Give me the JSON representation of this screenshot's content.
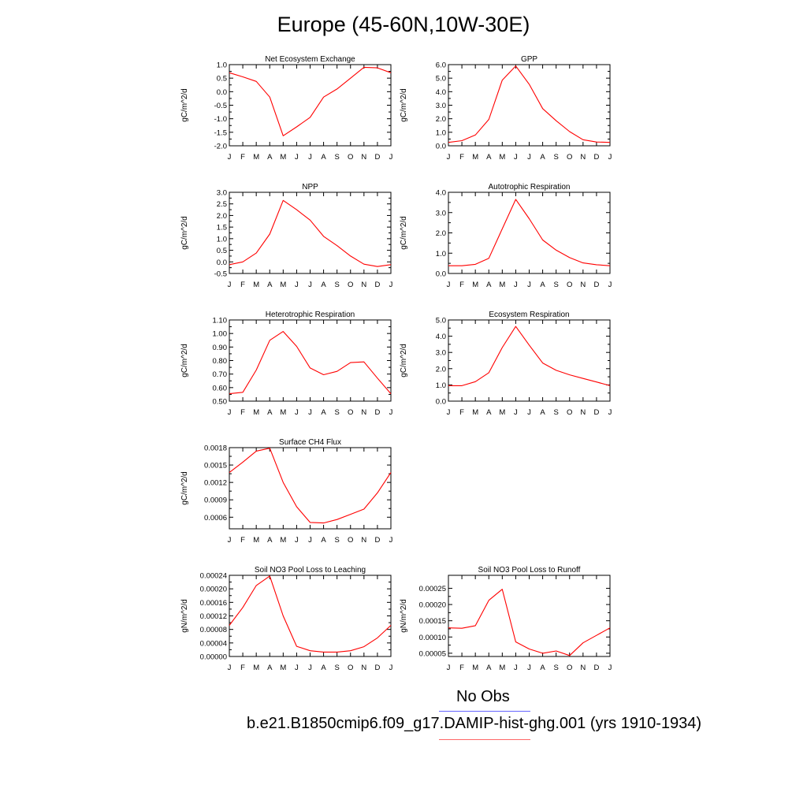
{
  "title": "Europe (45-60N,10W-30E)",
  "months": [
    "J",
    "F",
    "M",
    "A",
    "M",
    "J",
    "J",
    "A",
    "S",
    "O",
    "N",
    "D",
    "J"
  ],
  "colors": {
    "model": "#ff0000",
    "obs": "#6666ff",
    "axis": "#000000"
  },
  "legend": {
    "obs_label": "No Obs",
    "model_label": "b.e21.B1850cmip6.f09_g17.DAMIP-hist-ghg.001 (yrs 1910-1934)"
  },
  "chart_data": [
    {
      "type": "line",
      "title": "Net Ecosystem Exchange",
      "ylabel": "gC/m^2/d",
      "ylim": [
        -2.0,
        1.0
      ],
      "yticks": [
        -2.0,
        -1.5,
        -1.0,
        -0.5,
        0.0,
        0.5,
        1.0
      ],
      "ytick_labels": [
        "-2.0",
        "-1.5",
        "-1.0",
        "-0.5",
        "0.0",
        "0.5",
        "1.0"
      ],
      "series": [
        {
          "values": [
            0.7,
            0.55,
            0.38,
            -0.2,
            -1.63,
            -1.3,
            -0.95,
            -0.2,
            0.1,
            0.5,
            0.9,
            0.88,
            0.7
          ]
        }
      ]
    },
    {
      "type": "line",
      "title": "GPP",
      "ylabel": "gC/m^2/d",
      "ylim": [
        0.0,
        6.0
      ],
      "yticks": [
        0.0,
        1.0,
        2.0,
        3.0,
        4.0,
        5.0,
        6.0
      ],
      "ytick_labels": [
        "0.0",
        "1.0",
        "2.0",
        "3.0",
        "4.0",
        "5.0",
        "6.0"
      ],
      "series": [
        {
          "values": [
            0.25,
            0.38,
            0.8,
            1.95,
            4.85,
            5.9,
            4.55,
            2.75,
            1.85,
            1.05,
            0.45,
            0.28,
            0.25
          ]
        }
      ]
    },
    {
      "type": "line",
      "title": "NPP",
      "ylabel": "gC/m^2/d",
      "ylim": [
        -0.5,
        3.0
      ],
      "yticks": [
        -0.5,
        0.0,
        0.5,
        1.0,
        1.5,
        2.0,
        2.5,
        3.0
      ],
      "ytick_labels": [
        "-0.5",
        "0.0",
        "0.5",
        "1.0",
        "1.5",
        "2.0",
        "2.5",
        "3.0"
      ],
      "series": [
        {
          "values": [
            -0.12,
            0.0,
            0.38,
            1.2,
            2.65,
            2.25,
            1.8,
            1.1,
            0.7,
            0.25,
            -0.1,
            -0.2,
            -0.12
          ]
        }
      ]
    },
    {
      "type": "line",
      "title": "Autotrophic Respiration",
      "ylabel": "gC/m^2/d",
      "ylim": [
        0.0,
        4.0
      ],
      "yticks": [
        0.0,
        1.0,
        2.0,
        3.0,
        4.0
      ],
      "ytick_labels": [
        "0.0",
        "1.0",
        "2.0",
        "3.0",
        "4.0"
      ],
      "series": [
        {
          "values": [
            0.38,
            0.38,
            0.45,
            0.75,
            2.2,
            3.65,
            2.7,
            1.65,
            1.15,
            0.78,
            0.52,
            0.43,
            0.38
          ]
        }
      ]
    },
    {
      "type": "line",
      "title": "Heterotrophic Respiration",
      "ylabel": "gC/m^2/d",
      "ylim": [
        0.5,
        1.1
      ],
      "yticks": [
        0.5,
        0.6,
        0.7,
        0.8,
        0.9,
        1.0,
        1.1
      ],
      "ytick_labels": [
        "0.50",
        "0.60",
        "0.70",
        "0.80",
        "0.90",
        "1.00",
        "1.10"
      ],
      "series": [
        {
          "values": [
            0.555,
            0.565,
            0.73,
            0.95,
            1.015,
            0.905,
            0.745,
            0.695,
            0.72,
            0.785,
            0.79,
            0.67,
            0.555
          ]
        }
      ]
    },
    {
      "type": "line",
      "title": "Ecosystem Respiration",
      "ylabel": "gC/m^2/d",
      "ylim": [
        0.0,
        5.0
      ],
      "yticks": [
        0.0,
        1.0,
        2.0,
        3.0,
        4.0,
        5.0
      ],
      "ytick_labels": [
        "0.0",
        "1.0",
        "2.0",
        "3.0",
        "4.0",
        "5.0"
      ],
      "series": [
        {
          "values": [
            0.95,
            0.95,
            1.2,
            1.75,
            3.3,
            4.6,
            3.45,
            2.35,
            1.9,
            1.62,
            1.4,
            1.18,
            0.95
          ]
        }
      ]
    },
    {
      "type": "line",
      "title": "Surface CH4 Flux",
      "ylabel": "gC/m^2/d",
      "ylim": [
        0.0004,
        0.0018
      ],
      "yticks": [
        0.0006,
        0.0009,
        0.0012,
        0.0015,
        0.0018
      ],
      "ytick_labels": [
        "0.0006",
        "0.0009",
        "0.0012",
        "0.0015",
        "0.0018"
      ],
      "series": [
        {
          "values": [
            0.00137,
            0.00155,
            0.00174,
            0.00179,
            0.0012,
            0.00078,
            0.00051,
            0.0005,
            0.00056,
            0.00065,
            0.00074,
            0.00102,
            0.00137
          ]
        }
      ]
    },
    {
      "type": "line",
      "title": "Soil NO3 Pool Loss to Leaching",
      "ylabel": "gN/m^2/d",
      "ylim": [
        0.0,
        0.00024
      ],
      "yticks": [
        0.0,
        4e-05,
        8e-05,
        0.00012,
        0.00016,
        0.0002,
        0.00024
      ],
      "ytick_labels": [
        "0.00000",
        "0.00004",
        "0.00008",
        "0.00012",
        "0.00016",
        "0.00020",
        "0.00024"
      ],
      "series": [
        {
          "values": [
            9.2e-05,
            0.000145,
            0.00021,
            0.000238,
            0.00012,
            3e-05,
            1.7e-05,
            1.3e-05,
            1.3e-05,
            1.7e-05,
            2.9e-05,
            5.5e-05,
            9.2e-05
          ]
        }
      ]
    },
    {
      "type": "line",
      "title": "Soil NO3 Pool Loss to Runoff",
      "ylabel": "gN/m^2/d",
      "ylim": [
        4e-05,
        0.00029
      ],
      "yticks": [
        5e-05,
        0.0001,
        0.00015,
        0.0002,
        0.00025
      ],
      "ytick_labels": [
        "0.00005",
        "0.00010",
        "0.00015",
        "0.00020",
        "0.00025"
      ],
      "series": [
        {
          "values": [
            0.000128,
            0.000127,
            0.000135,
            0.000213,
            0.000247,
            8.5e-05,
            6.3e-05,
            5e-05,
            5.7e-05,
            4.3e-05,
            8.2e-05,
            0.000105,
            0.000128
          ]
        }
      ]
    }
  ]
}
